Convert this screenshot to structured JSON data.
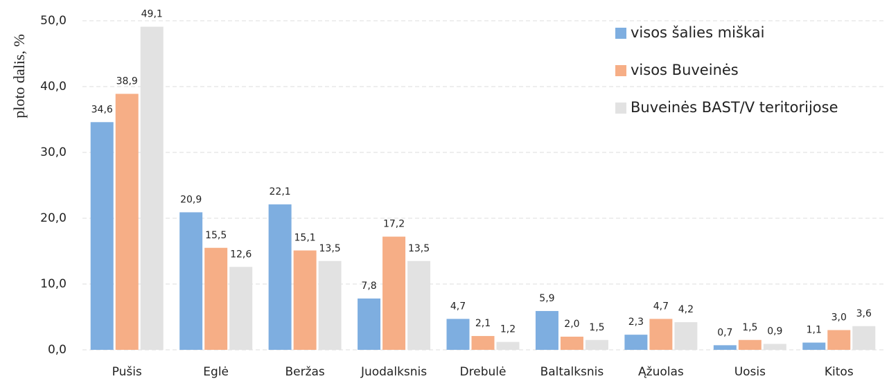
{
  "chart_data": {
    "type": "bar",
    "y_label": "ploto dalis, %",
    "categories": [
      "Pušis",
      "Eglė",
      "Beržas",
      "Juodalksnis",
      "Drebulė",
      "Baltalksnis",
      "Ąžuolas",
      "Uosis",
      "Kitos"
    ],
    "series": [
      {
        "name": "visos šalies miškai",
        "color": "#7eaee0",
        "values": [
          34.6,
          20.9,
          22.1,
          7.8,
          4.7,
          5.9,
          2.3,
          0.7,
          1.1
        ],
        "value_labels": [
          "34,6",
          "20,9",
          "22,1",
          "7,8",
          "4,7",
          "5,9",
          "2,3",
          "0,7",
          "1,1"
        ]
      },
      {
        "name": "visos Buveinės",
        "color": "#f6ae86",
        "values": [
          38.9,
          15.5,
          15.1,
          17.2,
          2.1,
          2.0,
          4.7,
          1.5,
          3.0
        ],
        "value_labels": [
          "38,9",
          "15,5",
          "15,1",
          "17,2",
          "2,1",
          "2,0",
          "4,7",
          "1,5",
          "3,0"
        ]
      },
      {
        "name": "Buveinės BAST/V teritorijose",
        "color": "#e2e2e2",
        "values": [
          49.1,
          12.6,
          13.5,
          13.5,
          1.2,
          1.5,
          4.2,
          0.9,
          3.6
        ],
        "value_labels": [
          "49,1",
          "12,6",
          "13,5",
          "13,5",
          "1,2",
          "1,5",
          "4,2",
          "0,9",
          "3,6"
        ]
      }
    ],
    "ylim": [
      0,
      50
    ],
    "yticks": [
      {
        "value": 0,
        "label": "0,0"
      },
      {
        "value": 10,
        "label": "10,0"
      },
      {
        "value": 20,
        "label": "20,0"
      },
      {
        "value": 30,
        "label": "30,0"
      },
      {
        "value": 40,
        "label": "40,0"
      },
      {
        "value": 50,
        "label": "50,0"
      }
    ],
    "grid": true,
    "legend": "top-right"
  }
}
